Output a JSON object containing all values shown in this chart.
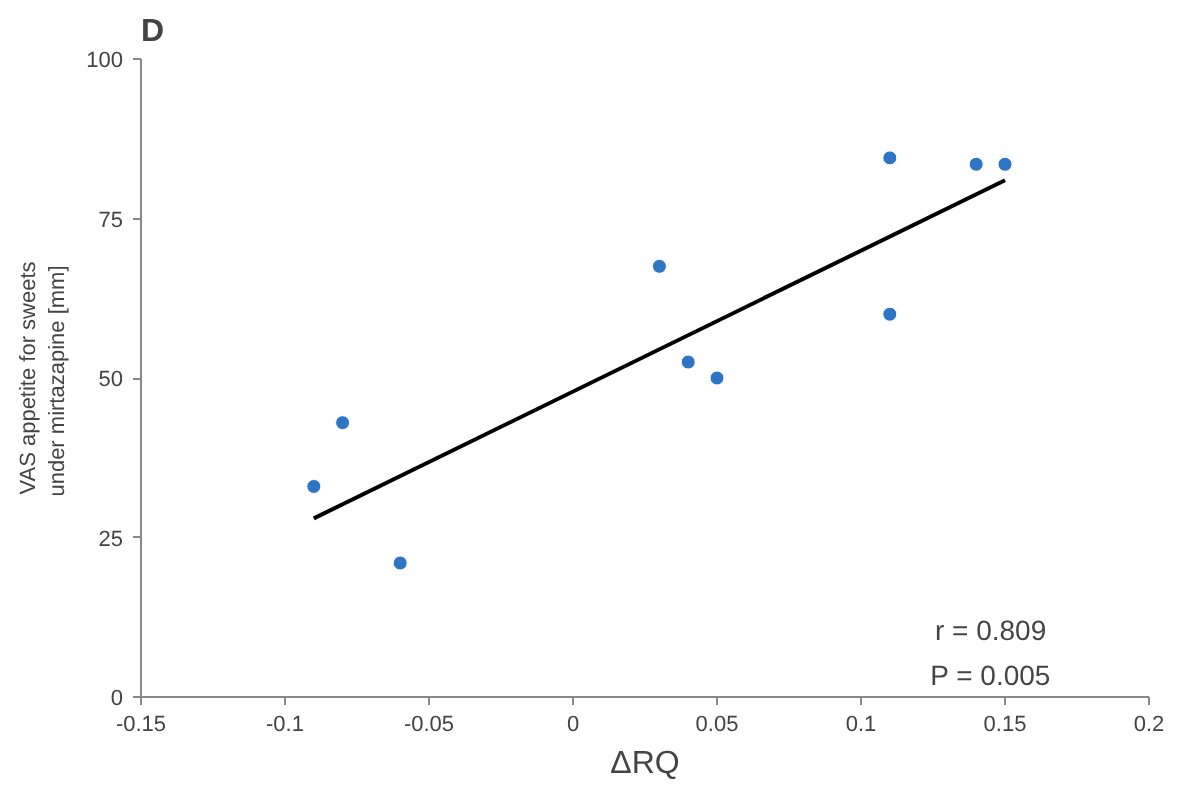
{
  "chart_data": {
    "type": "scatter",
    "title": "D",
    "xlabel": "ΔRQ",
    "ylabel": "VAS appetite for sweets\nunder mirtazapine  [mm]",
    "series": [
      {
        "color": "#2e75c6",
        "marker": "circle",
        "x": [
          -0.09,
          -0.08,
          -0.06,
          0.03,
          0.04,
          0.05,
          0.11,
          0.11,
          0.14,
          0.15
        ],
        "values": [
          33,
          43,
          21,
          67.5,
          52.5,
          50,
          84.5,
          60,
          83.5,
          83.5
        ]
      },
      {
        "type": "line",
        "color": "#000000",
        "x": [
          -0.09,
          0.15
        ],
        "values": [
          28,
          81
        ]
      }
    ],
    "xlim": [
      -0.15,
      0.2
    ],
    "xticks": [
      -0.15,
      -0.1,
      -0.05,
      0,
      0.05,
      0.1,
      0.15,
      0.2
    ],
    "ylim": [
      0,
      100
    ],
    "yticks": [
      0,
      25,
      50,
      75,
      100
    ],
    "annotations": [
      "r = 0.809",
      "P = 0.005"
    ],
    "grid": false
  }
}
